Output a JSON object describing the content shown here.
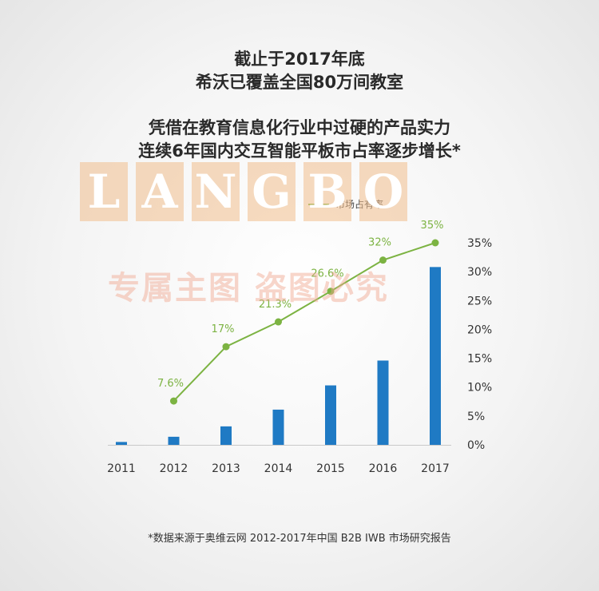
{
  "header": {
    "line1": "截止于2017年底",
    "line2": "希沃已覆盖全国80万间教室",
    "line3": "凭借在教育信息化行业中过硬的产品实力",
    "line4": "连续6年国内交互智能平板市占率逐步增长*"
  },
  "watermark": {
    "letters": [
      "L",
      "A",
      "N",
      "G",
      "B",
      "O"
    ],
    "subtitle": "专属主图  盗图必究"
  },
  "footnote": "*数据来源于奥维云网 2012-2017年中国 B2B IWB 市场研究报告",
  "colors": {
    "line": "#7cb342",
    "bar": "#1f7ac4",
    "text": "#2b2b2b",
    "watermark": "#f0be8c"
  },
  "chart_data": {
    "type": "bar+line",
    "categories": [
      "2011",
      "2012",
      "2013",
      "2014",
      "2015",
      "2016",
      "2017"
    ],
    "bar_series": {
      "name": "",
      "values": [
        0.5,
        1.4,
        3.2,
        6.1,
        10.3,
        14.6,
        30.8
      ]
    },
    "line_series": {
      "name": "市场占有率",
      "x": [
        "2012",
        "2013",
        "2014",
        "2015",
        "2016",
        "2017"
      ],
      "values": [
        7.6,
        17,
        21.3,
        26.6,
        32,
        35
      ],
      "labels": [
        "7.6%",
        "17%",
        "21.3%",
        "26.6%",
        "32%",
        "35%"
      ]
    },
    "y_axis": {
      "position": "right",
      "ticks": [
        "0%",
        "5%",
        "10%",
        "15%",
        "20%",
        "25%",
        "30%",
        "35%"
      ],
      "ylim": [
        0,
        35
      ]
    },
    "legend": "top-center",
    "grid": false
  }
}
